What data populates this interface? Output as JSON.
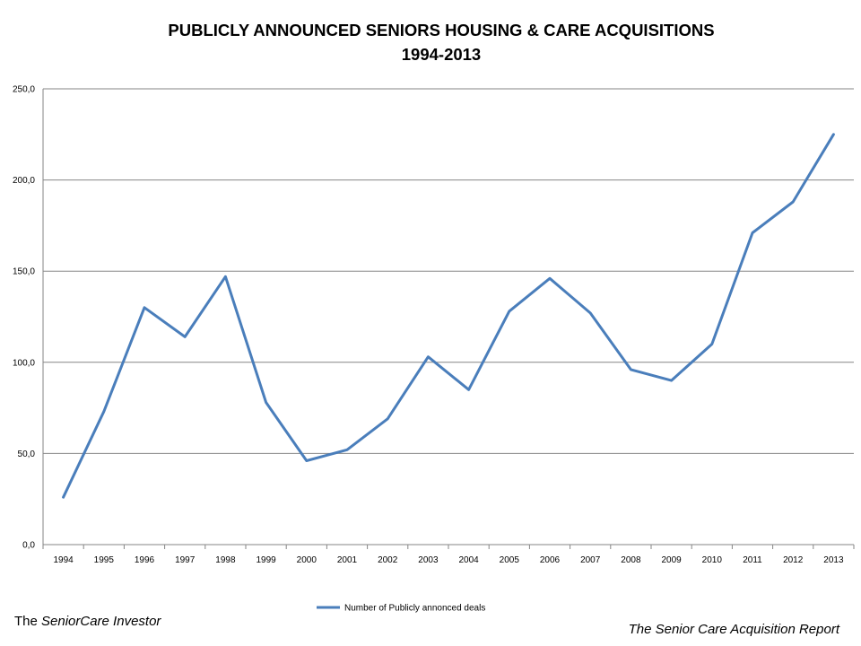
{
  "colors": {
    "series": "#4A7EBB",
    "grid": "#868686",
    "axis": "#868686"
  },
  "chart_data": {
    "type": "line",
    "title": "PUBLICLY ANNOUNCED SENIORS HOUSING & CARE ACQUISITIONS",
    "subtitle": "1994-2013",
    "xlabel": "",
    "ylabel": "",
    "ylim": [
      0,
      250
    ],
    "yticks": [
      "0,0",
      "50,0",
      "100,0",
      "150,0",
      "200,0",
      "250,0"
    ],
    "grid": true,
    "legend_position": "bottom",
    "categories": [
      "1994",
      "1995",
      "1996",
      "1997",
      "1998",
      "1999",
      "2000",
      "2001",
      "2002",
      "2003",
      "2004",
      "2005",
      "2006",
      "2007",
      "2008",
      "2009",
      "2010",
      "2011",
      "2012",
      "2013"
    ],
    "series": [
      {
        "name": "Number of Publicly annonced deals",
        "values": [
          26,
          73,
          130,
          114,
          147,
          78,
          46,
          52,
          69,
          103,
          85,
          128,
          146,
          127,
          96,
          90,
          110,
          171,
          188,
          225
        ]
      }
    ]
  },
  "footer": {
    "left_prefix": "The ",
    "left_italic": "SeniorCare Investor",
    "right": "The Senior Care Acquisition Report"
  }
}
